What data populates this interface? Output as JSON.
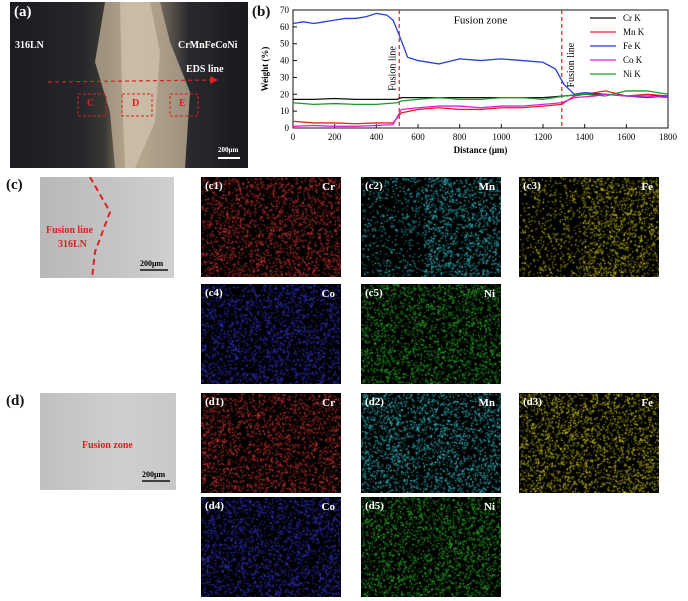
{
  "panel_a": {
    "letter": "(a)",
    "left_material": "316LN",
    "right_material": "CrMnFeCoNi",
    "eds_line": "EDS line",
    "boxes": [
      "C",
      "D",
      "E"
    ],
    "scale": "200μm"
  },
  "panel_b": {
    "letter": "(b)",
    "fusion_zone": "Fusion zone",
    "fusion_line_1": "Fusion line",
    "fusion_line_2": "Fusion line"
  },
  "chart_data": {
    "type": "line",
    "xlabel": "Distance (μm)",
    "ylabel": "Weight (%)",
    "xlim": [
      0,
      1800
    ],
    "ylim": [
      0,
      70
    ],
    "xticks": [
      0,
      200,
      400,
      600,
      800,
      1000,
      1200,
      1400,
      1600,
      1800
    ],
    "yticks": [
      0,
      10,
      20,
      30,
      40,
      50,
      60,
      70
    ],
    "legend_position": "top-right",
    "vlines": [
      510,
      1290
    ],
    "series": [
      {
        "name": "Cr K",
        "color": "#111111",
        "x": [
          0,
          100,
          200,
          300,
          400,
          500,
          520,
          600,
          700,
          800,
          900,
          1000,
          1100,
          1200,
          1300,
          1400,
          1500,
          1600,
          1700,
          1800
        ],
        "y": [
          17,
          17,
          17.5,
          17,
          17,
          17,
          18,
          18,
          18,
          18,
          18,
          18,
          18,
          18,
          19,
          20,
          20,
          19,
          19,
          19
        ]
      },
      {
        "name": "Mn K",
        "color": "#e8202a",
        "x": [
          0,
          100,
          200,
          300,
          400,
          480,
          520,
          600,
          700,
          800,
          900,
          1000,
          1100,
          1200,
          1290,
          1350,
          1450,
          1500,
          1600,
          1700,
          1800
        ],
        "y": [
          4,
          3,
          3,
          2.5,
          3,
          3,
          9,
          11,
          12,
          11,
          11,
          12,
          12,
          13,
          14,
          19,
          21,
          22,
          19,
          20,
          19
        ]
      },
      {
        "name": "Fe K",
        "color": "#2b3fd6",
        "x": [
          0,
          50,
          100,
          150,
          200,
          250,
          300,
          350,
          400,
          450,
          480,
          510,
          550,
          600,
          700,
          800,
          900,
          1000,
          1100,
          1200,
          1260,
          1300,
          1350,
          1400,
          1500,
          1600,
          1700,
          1800
        ],
        "y": [
          62,
          63,
          62,
          63,
          64,
          65,
          65,
          66,
          68,
          67,
          64,
          55,
          42,
          40,
          38,
          41,
          40,
          41,
          40,
          39,
          35,
          26,
          20,
          21,
          20,
          19,
          18,
          19
        ]
      },
      {
        "name": "Co K",
        "color": "#e020d8",
        "x": [
          0,
          100,
          200,
          300,
          400,
          480,
          520,
          600,
          700,
          800,
          900,
          1000,
          1100,
          1200,
          1290,
          1350,
          1450,
          1500,
          1600,
          1700,
          1800
        ],
        "y": [
          1,
          1.5,
          1,
          1,
          1.5,
          2,
          11,
          12,
          13,
          13,
          12,
          13,
          13,
          14,
          15,
          18,
          19,
          20,
          19,
          19,
          18
        ]
      },
      {
        "name": "Ni K",
        "color": "#1e9a2a",
        "x": [
          0,
          100,
          200,
          300,
          400,
          500,
          520,
          600,
          700,
          800,
          900,
          1000,
          1100,
          1200,
          1300,
          1400,
          1500,
          1600,
          1700,
          1800
        ],
        "y": [
          15,
          14,
          14.5,
          14,
          14,
          15,
          16,
          17,
          18,
          17,
          17,
          18,
          18,
          17,
          19,
          20,
          19,
          22,
          22,
          20
        ]
      }
    ]
  },
  "panel_c": {
    "letter": "(c)",
    "fusion_line": "Fusion line",
    "material": "316LN",
    "scale": "200μm",
    "maps": [
      {
        "label": "(c1)",
        "element": "Cr",
        "color": "#e03a3a"
      },
      {
        "label": "(c2)",
        "element": "Mn",
        "color": "#38d0d8"
      },
      {
        "label": "(c3)",
        "element": "Fe",
        "color": "#d8d020"
      },
      {
        "label": "(c4)",
        "element": "Co",
        "color": "#3838e0"
      },
      {
        "label": "(c5)",
        "element": "Ni",
        "color": "#30c030"
      }
    ]
  },
  "panel_d": {
    "letter": "(d)",
    "fusion_zone": "Fusion zone",
    "scale": "200μm",
    "maps": [
      {
        "label": "(d1)",
        "element": "Cr",
        "color": "#e03a3a"
      },
      {
        "label": "(d2)",
        "element": "Mn",
        "color": "#38d0d8"
      },
      {
        "label": "(d3)",
        "element": "Fe",
        "color": "#d8d020"
      },
      {
        "label": "(d4)",
        "element": "Co",
        "color": "#3838e0"
      },
      {
        "label": "(d5)",
        "element": "Ni",
        "color": "#30c030"
      }
    ]
  }
}
